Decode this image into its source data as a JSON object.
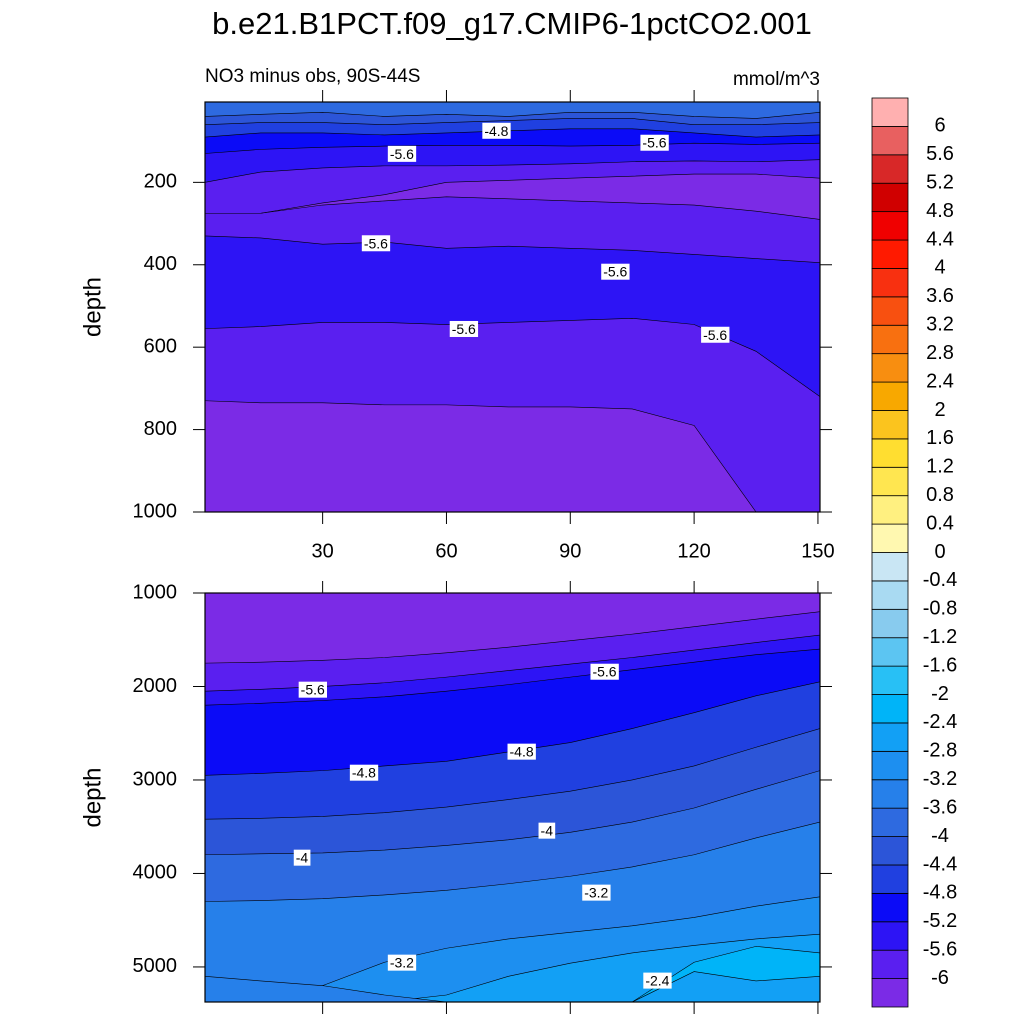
{
  "title": "b.e21.B1PCT.f09_g17.CMIP6-1pctCO2.001",
  "colorbar": {
    "levels": [
      -6,
      -5.6,
      -5.2,
      -4.8,
      -4.4,
      -4,
      -3.6,
      -3.2,
      -2.8,
      -2.4,
      -2,
      -1.6,
      -1.2,
      -0.8,
      -0.4,
      0,
      0.4,
      0.8,
      1.2,
      1.6,
      2,
      2.4,
      2.8,
      3.2,
      3.6,
      4,
      4.4,
      4.8,
      5.2,
      5.6,
      6
    ],
    "colors": [
      "#7b2be6",
      "#5a1ff0",
      "#2d14f5",
      "#0b0bf7",
      "#2040e0",
      "#2c55d8",
      "#2e6ae0",
      "#2680ea",
      "#1d8ff0",
      "#12a0f5",
      "#00b4f8",
      "#28c0f5",
      "#5cc5f2",
      "#88cbee",
      "#a9daf2",
      "#c9e6f4",
      "#fff8b0",
      "#fff080",
      "#ffe650",
      "#ffde30",
      "#fbc41e",
      "#f8a800",
      "#f88e10",
      "#f87010",
      "#f85010",
      "#f83010",
      "#ff1a00",
      "#f00000",
      "#d00000",
      "#d82828",
      "#e86060",
      "#ffb0b0"
    ]
  },
  "chart_data": [
    {
      "type": "contour",
      "subtitle": "NO3 minus obs, 90S-44S",
      "units": "mmol/m^3",
      "y_label": "depth",
      "xlim": [
        1.5,
        150.5
      ],
      "ylim": [
        5,
        1000
      ],
      "xticks": [
        30,
        60,
        90,
        120,
        150
      ],
      "yticks": [
        200,
        400,
        600,
        800,
        1000
      ],
      "xtick_labels_shown": true,
      "x": [
        1.5,
        15,
        30,
        45,
        60,
        75,
        90,
        105,
        120,
        135,
        150.5
      ],
      "regions": [
        {
          "below_level": -3.6,
          "top": [
            5,
            5,
            5,
            5,
            5,
            5,
            5,
            5,
            5,
            5,
            5
          ]
        },
        {
          "below_level": -4,
          "top": [
            40,
            35,
            30,
            40,
            35,
            40,
            30,
            30,
            40,
            45,
            30
          ]
        },
        {
          "below_level": -4.4,
          "top": [
            60,
            55,
            55,
            60,
            55,
            50,
            45,
            45,
            60,
            60,
            55
          ]
        },
        {
          "below_level": -4.8,
          "top": [
            90,
            80,
            80,
            85,
            80,
            75,
            70,
            70,
            80,
            90,
            85
          ]
        },
        {
          "below_level": -5.2,
          "top": [
            130,
            120,
            115,
            112,
            110,
            110,
            112,
            110,
            105,
            108,
            105
          ]
        },
        {
          "below_level": -5.6,
          "top": [
            200,
            175,
            165,
            160,
            160,
            158,
            155,
            150,
            148,
            150,
            145
          ]
        },
        {
          "below_level": -6,
          "top": [
            275,
            275,
            250,
            230,
            200,
            195,
            190,
            185,
            180,
            180,
            190
          ],
          "bottom": [
            275,
            275,
            255,
            245,
            235,
            240,
            245,
            250,
            255,
            270,
            290
          ]
        },
        {
          "below_level": -5.2,
          "top": [
            330,
            335,
            350,
            345,
            360,
            355,
            360,
            365,
            375,
            385,
            395
          ]
        },
        {
          "below_level": -5.6,
          "top": [
            555,
            550,
            540,
            540,
            545,
            540,
            535,
            530,
            545,
            610,
            720
          ]
        },
        {
          "below_level": -6,
          "top": [
            730,
            735,
            735,
            740,
            740,
            745,
            745,
            750,
            790,
            1000,
            1000
          ]
        }
      ],
      "contour_labels": [
        {
          "x": 72.1,
          "y": 78,
          "value": -4.8
        },
        {
          "x": 49.2,
          "y": 134,
          "value": -5.6
        },
        {
          "x": 110.4,
          "y": 107,
          "value": -5.6
        },
        {
          "x": 42.9,
          "y": 351,
          "value": -5.6
        },
        {
          "x": 100.9,
          "y": 420,
          "value": -5.6
        },
        {
          "x": 64.2,
          "y": 559,
          "value": -5.6
        },
        {
          "x": 125.1,
          "y": 573,
          "value": -5.6
        }
      ]
    },
    {
      "type": "contour",
      "y_label": "depth",
      "xlim": [
        1.5,
        150.5
      ],
      "ylim": [
        1000,
        5375
      ],
      "xticks": [
        30,
        60,
        90,
        120,
        150
      ],
      "yticks": [
        1000,
        2000,
        3000,
        4000,
        5000
      ],
      "xtick_labels_shown": false,
      "x": [
        1.5,
        15,
        30,
        45,
        60,
        75,
        90,
        105,
        120,
        135,
        150.5
      ],
      "regions": [
        {
          "below_level": -6,
          "top": [
            1000,
            1000,
            1000,
            1000,
            1000,
            1000,
            1000,
            1000,
            1000,
            1000,
            1000
          ]
        },
        {
          "below_level": -5.6,
          "top": [
            1750,
            1740,
            1720,
            1690,
            1640,
            1580,
            1510,
            1440,
            1360,
            1280,
            1200
          ]
        },
        {
          "below_level": -5.2,
          "top": [
            2050,
            2030,
            2000,
            1960,
            1900,
            1830,
            1760,
            1690,
            1610,
            1530,
            1450
          ]
        },
        {
          "below_level": -4.8,
          "top": [
            2200,
            2180,
            2150,
            2110,
            2050,
            1980,
            1900,
            1820,
            1740,
            1660,
            1600
          ]
        },
        {
          "below_level": -4.4,
          "top": [
            2950,
            2930,
            2900,
            2850,
            2800,
            2700,
            2600,
            2450,
            2280,
            2100,
            1950
          ]
        },
        {
          "below_level": -4,
          "top": [
            3420,
            3410,
            3390,
            3350,
            3290,
            3210,
            3120,
            3000,
            2850,
            2650,
            2450
          ]
        },
        {
          "below_level": -3.6,
          "top": [
            3800,
            3790,
            3780,
            3750,
            3700,
            3640,
            3560,
            3450,
            3300,
            3100,
            2900
          ]
        },
        {
          "below_level": -3.2,
          "top": [
            4300,
            4290,
            4270,
            4230,
            4180,
            4110,
            4030,
            3930,
            3800,
            3620,
            3450
          ]
        },
        {
          "below_level": -2.8,
          "top": [
            5375,
            5375,
            5200,
            4950,
            4800,
            4700,
            4630,
            4560,
            4470,
            4350,
            4250
          ]
        },
        {
          "below_level": -2.4,
          "top": [
            5375,
            5375,
            5375,
            5375,
            5300,
            5100,
            4960,
            4850,
            4770,
            4700,
            4650
          ]
        },
        {
          "below_level": -2,
          "top": [
            5375,
            5375,
            5375,
            5375,
            5375,
            5375,
            5375,
            5375,
            4950,
            4780,
            4850
          ],
          "bottom": [
            5375,
            5375,
            5375,
            5375,
            5375,
            5375,
            5375,
            5375,
            5050,
            5150,
            5100
          ]
        },
        {
          "below_level": -3.2,
          "top": [
            5100,
            5150,
            5200,
            5300,
            5375,
            5375,
            5375,
            5375,
            5375,
            5375,
            5375
          ]
        }
      ],
      "contour_labels": [
        {
          "x": 27.6,
          "y": 2048,
          "value": -5.6
        },
        {
          "x": 98.3,
          "y": 1856,
          "value": -5.6
        },
        {
          "x": 40,
          "y": 2936,
          "value": -4.8
        },
        {
          "x": 78.2,
          "y": 2711,
          "value": -4.8
        },
        {
          "x": 84.3,
          "y": 3556,
          "value": -4
        },
        {
          "x": 25,
          "y": 3845,
          "value": -4
        },
        {
          "x": 96.3,
          "y": 4219,
          "value": -3.2
        },
        {
          "x": 49.2,
          "y": 4968,
          "value": -3.2
        },
        {
          "x": 111.1,
          "y": 5160,
          "value": -2.4
        }
      ]
    }
  ]
}
